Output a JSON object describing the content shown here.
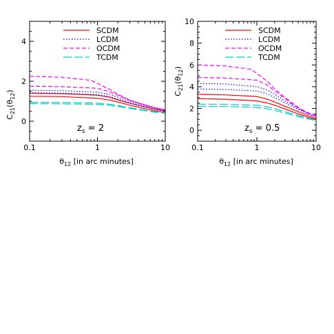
{
  "chart_data": [
    {
      "type": "line",
      "xscale": "log",
      "xlim": [
        0.1,
        10
      ],
      "ylim": [
        -1,
        5
      ],
      "xticks": [
        0.1,
        1,
        10
      ],
      "xtick_labels": [
        "0.1",
        "1",
        "10"
      ],
      "yticks": [
        0,
        2,
        4
      ],
      "ytick_labels": [
        "0",
        "2",
        "4"
      ],
      "xlabel": "θ12 [in arc minutes]",
      "ylabel": "C21(θ12)",
      "annotation": "zs = 2",
      "legend": "top-right",
      "series": [
        {
          "name": "SCDM",
          "color": "#ff0000",
          "dash": "solid",
          "x": [
            0.1,
            0.3,
            1,
            1.5,
            2,
            3,
            5,
            7,
            10
          ],
          "y": [
            1.4,
            1.38,
            1.3,
            1.2,
            1.07,
            0.9,
            0.72,
            0.6,
            0.52
          ]
        },
        {
          "name": "SCDM",
          "color": "#ff0000",
          "dash": "solid",
          "x": [
            0.1,
            0.3,
            1,
            1.5,
            2,
            3,
            5,
            7,
            10
          ],
          "y": [
            1.25,
            1.23,
            1.15,
            1.06,
            0.96,
            0.8,
            0.63,
            0.52,
            0.44
          ]
        },
        {
          "name": "LCDM",
          "color": "#0000ff",
          "dash": "dotted",
          "x": [
            0.1,
            0.3,
            1,
            1.5,
            2,
            3,
            5,
            7,
            10
          ],
          "y": [
            1.55,
            1.53,
            1.45,
            1.35,
            1.2,
            1.0,
            0.78,
            0.65,
            0.55
          ]
        },
        {
          "name": "LCDM",
          "color": "#0000ff",
          "dash": "dotted",
          "x": [
            0.1,
            0.3,
            1,
            1.5,
            2,
            3,
            5,
            7,
            10
          ],
          "y": [
            1.42,
            1.4,
            1.33,
            1.23,
            1.1,
            0.92,
            0.72,
            0.6,
            0.5
          ]
        },
        {
          "name": "OCDM",
          "color": "#ff00ff",
          "dash": "dashed",
          "x": [
            0.1,
            0.3,
            0.8,
            1.5,
            2,
            3,
            5,
            7,
            10
          ],
          "y": [
            2.25,
            2.2,
            2.05,
            1.6,
            1.35,
            1.05,
            0.82,
            0.68,
            0.58
          ]
        },
        {
          "name": "OCDM",
          "color": "#ff00ff",
          "dash": "dashed",
          "x": [
            0.1,
            0.3,
            1,
            1.5,
            2,
            3,
            5,
            7,
            10
          ],
          "y": [
            1.75,
            1.73,
            1.65,
            1.48,
            1.3,
            1.05,
            0.82,
            0.68,
            0.56
          ]
        },
        {
          "name": "TCDM",
          "color": "#00cccc",
          "dash": "longdash",
          "x": [
            0.1,
            0.3,
            1,
            1.5,
            2,
            3,
            5,
            7,
            10
          ],
          "y": [
            0.95,
            0.94,
            0.9,
            0.85,
            0.78,
            0.68,
            0.56,
            0.48,
            0.42
          ]
        },
        {
          "name": "TCDM",
          "color": "#00cccc",
          "dash": "longdash",
          "x": [
            0.1,
            0.3,
            1,
            1.5,
            2,
            3,
            5,
            7,
            10
          ],
          "y": [
            0.88,
            0.87,
            0.84,
            0.8,
            0.74,
            0.64,
            0.53,
            0.45,
            0.4
          ]
        }
      ]
    },
    {
      "type": "line",
      "xscale": "log",
      "xlim": [
        0.1,
        10
      ],
      "ylim": [
        -1,
        10
      ],
      "xticks": [
        0.1,
        1,
        10
      ],
      "xtick_labels": [
        "0.1",
        "1",
        "10"
      ],
      "yticks": [
        0,
        2,
        4,
        6,
        8,
        10
      ],
      "ytick_labels": [
        "0",
        "2",
        "4",
        "6",
        "8",
        "10"
      ],
      "xlabel": "θ12 [in arc minutes]",
      "ylabel": "C21(θ12)",
      "annotation": "zs = 0.5",
      "legend": "top-right",
      "series": [
        {
          "name": "SCDM",
          "color": "#ff0000",
          "dash": "solid",
          "x": [
            0.1,
            0.3,
            1,
            1.5,
            2,
            3,
            5,
            7,
            10
          ],
          "y": [
            3.3,
            3.25,
            3.1,
            2.85,
            2.6,
            2.2,
            1.7,
            1.4,
            1.1
          ]
        },
        {
          "name": "SCDM",
          "color": "#ff0000",
          "dash": "solid",
          "x": [
            0.1,
            0.3,
            1,
            1.5,
            2,
            3,
            5,
            7,
            10
          ],
          "y": [
            2.9,
            2.85,
            2.7,
            2.5,
            2.3,
            1.95,
            1.5,
            1.25,
            1.0
          ]
        },
        {
          "name": "LCDM",
          "color": "#0000ff",
          "dash": "dotted",
          "x": [
            0.1,
            0.3,
            1,
            1.5,
            2,
            3,
            5,
            7,
            10
          ],
          "y": [
            4.3,
            4.25,
            4.0,
            3.7,
            3.3,
            2.7,
            2.0,
            1.6,
            1.3
          ]
        },
        {
          "name": "LCDM",
          "color": "#0000ff",
          "dash": "dotted",
          "x": [
            0.1,
            0.3,
            1,
            1.5,
            2,
            3,
            5,
            7,
            10
          ],
          "y": [
            3.8,
            3.75,
            3.6,
            3.35,
            3.0,
            2.5,
            1.9,
            1.55,
            1.25
          ]
        },
        {
          "name": "OCDM",
          "color": "#ff00ff",
          "dash": "dashed",
          "x": [
            0.1,
            0.3,
            0.8,
            1.5,
            2,
            3,
            5,
            7,
            10
          ],
          "y": [
            6.0,
            5.9,
            5.6,
            4.5,
            3.8,
            3.0,
            2.1,
            1.65,
            1.35
          ]
        },
        {
          "name": "OCDM",
          "color": "#ff00ff",
          "dash": "dashed",
          "x": [
            0.1,
            0.3,
            1,
            1.5,
            2,
            3,
            5,
            7,
            10
          ],
          "y": [
            4.85,
            4.8,
            4.6,
            4.15,
            3.6,
            2.9,
            2.05,
            1.6,
            1.3
          ]
        },
        {
          "name": "TCDM",
          "color": "#00cccc",
          "dash": "longdash",
          "x": [
            0.1,
            0.3,
            1,
            1.5,
            2,
            3,
            5,
            7,
            10
          ],
          "y": [
            2.4,
            2.38,
            2.3,
            2.15,
            2.0,
            1.7,
            1.35,
            1.15,
            0.95
          ]
        },
        {
          "name": "TCDM",
          "color": "#00cccc",
          "dash": "longdash",
          "x": [
            0.1,
            0.3,
            1,
            1.5,
            2,
            3,
            5,
            7,
            10
          ],
          "y": [
            2.2,
            2.18,
            2.1,
            1.97,
            1.83,
            1.57,
            1.25,
            1.06,
            0.9
          ]
        }
      ]
    }
  ],
  "legend_entries": [
    {
      "name": "SCDM",
      "color": "#ff0000",
      "dash": "solid"
    },
    {
      "name": "LCDM",
      "color": "#0000ff",
      "dash": "dotted"
    },
    {
      "name": "OCDM",
      "color": "#ff00ff",
      "dash": "dashed"
    },
    {
      "name": "TCDM",
      "color": "#00cccc",
      "dash": "longdash"
    }
  ],
  "labels": {
    "ylabel_main": "C",
    "ylabel_sub": "21",
    "ylabel_paren_open": "(θ",
    "ylabel_paren_sub": "12",
    "ylabel_close": ")",
    "xlabel_main": "θ",
    "xlabel_sub": "12",
    "xlabel_rest": " [in arc minutes]",
    "left_annot_main": "z",
    "left_annot_sub": "s",
    "left_annot_rest": " = 2",
    "right_annot_main": "z",
    "right_annot_sub": "s",
    "right_annot_rest": " = 0.5"
  }
}
